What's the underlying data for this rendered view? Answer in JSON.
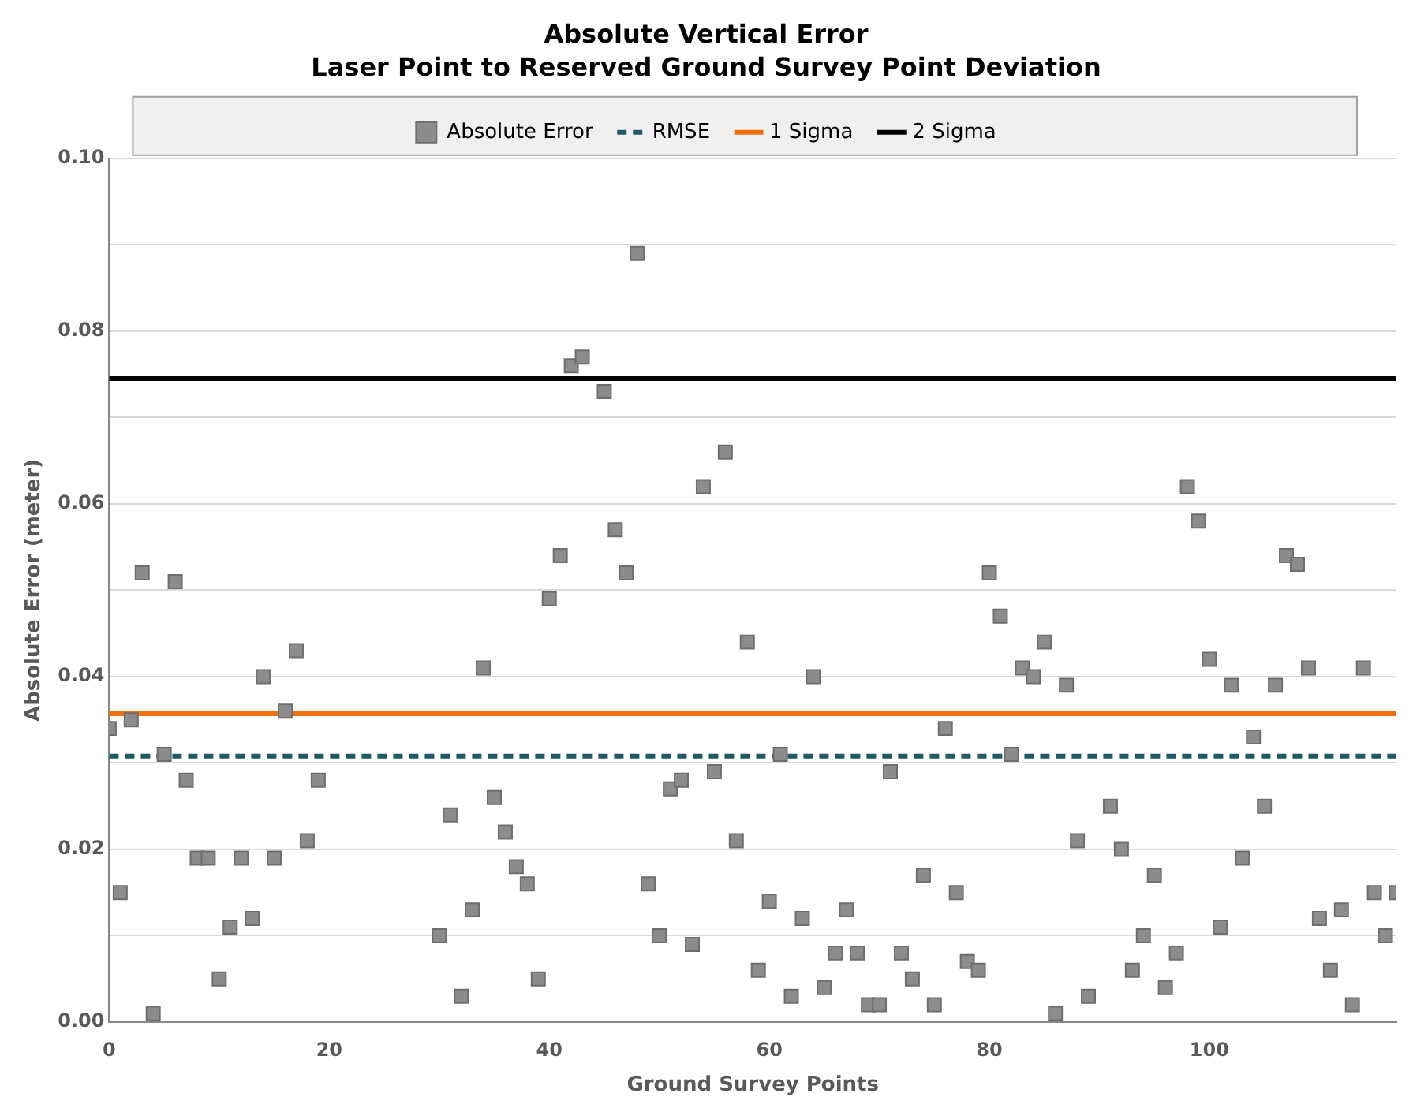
{
  "chart_data": {
    "type": "scatter",
    "title": "Absolute Vertical Error",
    "subtitle": "Laser Point to Reserved Ground Survey Point Deviation",
    "xlabel": "Ground Survey Points",
    "ylabel": "Absolute Error (meter)",
    "series": [
      {
        "name": "Absolute Error",
        "color": "#8c8c8c",
        "x": [
          0,
          1,
          2,
          3,
          4,
          5,
          6,
          7,
          8,
          9,
          10,
          11,
          12,
          13,
          14,
          15,
          16,
          17,
          18,
          19,
          30,
          31,
          32,
          33,
          34,
          35,
          36,
          37,
          38,
          39,
          40,
          41,
          42,
          43,
          45,
          46,
          47,
          48,
          49,
          50,
          51,
          52,
          53,
          54,
          55,
          56,
          57,
          58,
          59,
          60,
          61,
          62,
          63,
          64,
          65,
          66,
          67,
          68,
          69,
          70,
          71,
          72,
          73,
          74,
          75,
          76,
          77,
          78,
          79,
          80,
          81,
          82,
          83,
          84,
          85,
          86,
          87,
          88,
          89,
          91,
          92,
          93,
          94,
          95,
          96,
          97,
          98,
          99,
          100,
          101,
          102,
          103,
          104,
          105,
          106,
          107,
          108,
          109,
          110,
          111,
          112,
          113,
          114,
          115,
          116,
          117
        ],
        "values": [
          0.034,
          0.015,
          0.035,
          0.052,
          0.001,
          0.031,
          0.051,
          0.028,
          0.019,
          0.019,
          0.005,
          0.011,
          0.019,
          0.012,
          0.04,
          0.019,
          0.036,
          0.043,
          0.021,
          0.028,
          0.01,
          0.024,
          0.003,
          0.013,
          0.041,
          0.026,
          0.022,
          0.018,
          0.016,
          0.005,
          0.049,
          0.054,
          0.076,
          0.077,
          0.073,
          0.057,
          0.052,
          0.089,
          0.016,
          0.01,
          0.027,
          0.028,
          0.009,
          0.062,
          0.029,
          0.066,
          0.021,
          0.044,
          0.006,
          0.014,
          0.031,
          0.003,
          0.012,
          0.04,
          0.004,
          0.008,
          0.013,
          0.008,
          0.002,
          0.002,
          0.029,
          0.008,
          0.005,
          0.017,
          0.002,
          0.034,
          0.015,
          0.007,
          0.006,
          0.052,
          0.047,
          0.031,
          0.041,
          0.04,
          0.044,
          0.001,
          0.039,
          0.021,
          0.003,
          0.025,
          0.02,
          0.006,
          0.01,
          0.017,
          0.004,
          0.008,
          0.062,
          0.058,
          0.042,
          0.011,
          0.039,
          0.019,
          0.033,
          0.025,
          0.039,
          0.054,
          0.053,
          0.041,
          0.012,
          0.006,
          0.013,
          0.002,
          0.041,
          0.015,
          0.01,
          0.015
        ]
      }
    ],
    "ref_lines": [
      {
        "axis": "y",
        "value": 0.0308,
        "label": "RMSE",
        "color": "#1f5866",
        "line_style": "dashed"
      },
      {
        "axis": "y",
        "value": 0.0357,
        "label": "1 Sigma",
        "color": "#f07010",
        "line_style": "solid"
      },
      {
        "axis": "y",
        "value": 0.0745,
        "label": "2 Sigma",
        "color": "#000000",
        "line_style": "solid"
      }
    ],
    "marker": "square",
    "legend": "top",
    "grid": "y",
    "xlim": [
      0,
      117
    ],
    "xticks": [
      0,
      20,
      40,
      60,
      80,
      100
    ],
    "ylim": [
      0,
      0.1
    ],
    "yticks": [
      {
        "value": 0,
        "label": "0.00"
      },
      {
        "value": 0.01,
        "label": null
      },
      {
        "value": 0.02,
        "label": "0.02"
      },
      {
        "value": 0.03,
        "label": null
      },
      {
        "value": 0.04,
        "label": "0.04"
      },
      {
        "value": 0.05,
        "label": null
      },
      {
        "value": 0.06,
        "label": "0.06"
      },
      {
        "value": 0.07,
        "label": null
      },
      {
        "value": 0.08,
        "label": "0.08"
      },
      {
        "value": 0.09,
        "label": null
      },
      {
        "value": 0.1,
        "label": "0.10"
      }
    ]
  }
}
